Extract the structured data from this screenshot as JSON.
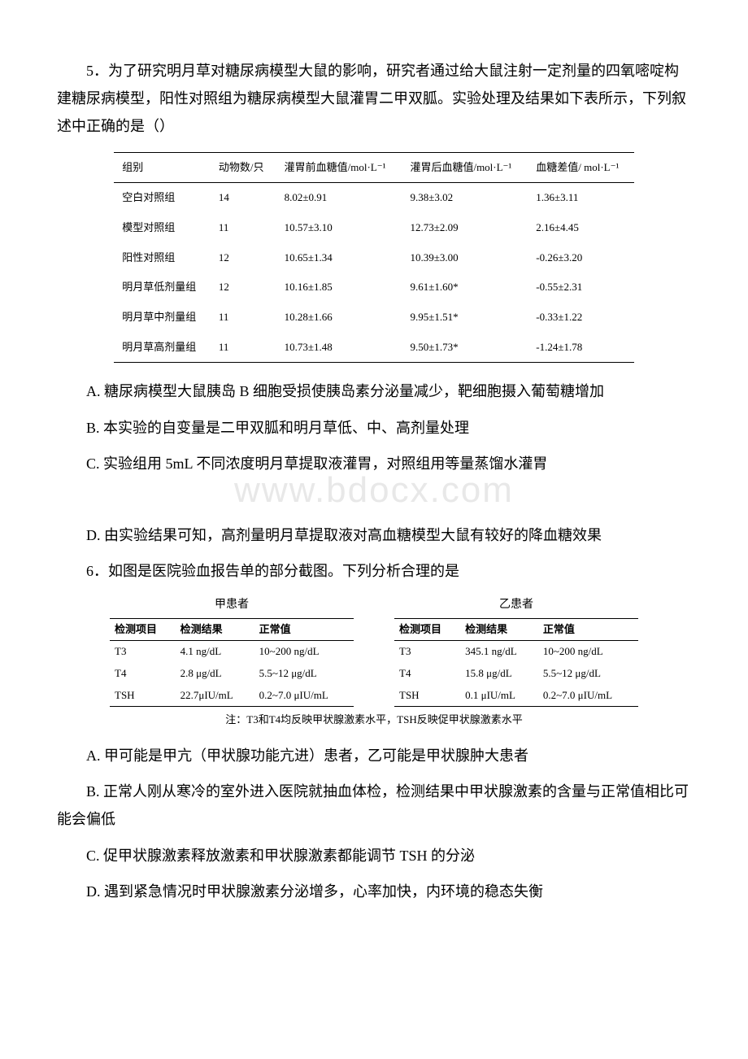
{
  "q5": {
    "stem": "5．为了研究明月草对糖尿病模型大鼠的影响，研究者通过给大鼠注射一定剂量的四氧嘧啶构建糖尿病模型，阳性对照组为糖尿病模型大鼠灌胃二甲双胍。实验处理及结果如下表所示，下列叙述中正确的是（）",
    "table": {
      "headers": [
        "组别",
        "动物数/只",
        "灌胃前血糖值/mol·L⁻¹",
        "灌胃后血糖值/mol·L⁻¹",
        "血糖差值/ mol·L⁻¹"
      ],
      "rows": [
        [
          "空白对照组",
          "14",
          "8.02±0.91",
          "9.38±3.02",
          "1.36±3.11"
        ],
        [
          "模型对照组",
          "11",
          "10.57±3.10",
          "12.73±2.09",
          "2.16±4.45"
        ],
        [
          "阳性对照组",
          "12",
          "10.65±1.34",
          "10.39±3.00",
          "-0.26±3.20"
        ],
        [
          "明月草低剂量组",
          "12",
          "10.16±1.85",
          "9.61±1.60*",
          "-0.55±2.31"
        ],
        [
          "明月草中剂量组",
          "11",
          "10.28±1.66",
          "9.95±1.51*",
          "-0.33±1.22"
        ],
        [
          "明月草高剂量组",
          "11",
          "10.73±1.48",
          "9.50±1.73*",
          "-1.24±1.78"
        ]
      ]
    },
    "optA": "A. 糖尿病模型大鼠胰岛 B 细胞受损使胰岛素分泌量减少，靶细胞摄入葡萄糖增加",
    "optB": "B. 本实验的自变量是二甲双胍和明月草低、中、高剂量处理",
    "optC": "C. 实验组用 5mL 不同浓度明月草提取液灌胃，对照组用等量蒸馏水灌胃",
    "optD": "D. 由实验结果可知，高剂量明月草提取液对高血糖模型大鼠有较好的降血糖效果"
  },
  "watermark": "www.bdocx.com",
  "q6": {
    "stem": "6．如图是医院验血报告单的部分截图。下列分析合理的是",
    "report_headers": [
      "检测项目",
      "检测结果",
      "正常值"
    ],
    "patientA": {
      "title": "甲患者",
      "rows": [
        [
          "T3",
          "4.1 ng/dL",
          "10~200 ng/dL"
        ],
        [
          "T4",
          "2.8 μg/dL",
          "5.5~12 μg/dL"
        ],
        [
          "TSH",
          "22.7μIU/mL",
          "0.2~7.0 μIU/mL"
        ]
      ]
    },
    "patientB": {
      "title": "乙患者",
      "rows": [
        [
          "T3",
          "345.1 ng/dL",
          "10~200 ng/dL"
        ],
        [
          "T4",
          "15.8 μg/dL",
          "5.5~12 μg/dL"
        ],
        [
          "TSH",
          "0.1 μIU/mL",
          "0.2~7.0 μIU/mL"
        ]
      ]
    },
    "note": "注：T3和T4均反映甲状腺激素水平，TSH反映促甲状腺激素水平",
    "optA": "A. 甲可能是甲亢（甲状腺功能亢进）患者，乙可能是甲状腺肿大患者",
    "optB": "B. 正常人刚从寒冷的室外进入医院就抽血体检，检测结果中甲状腺激素的含量与正常值相比可能会偏低",
    "optC": "C. 促甲状腺激素释放激素和甲状腺激素都能调节 TSH 的分泌",
    "optD": "D. 遇到紧急情况时甲状腺激素分泌增多，心率加快，内环境的稳态失衡"
  }
}
